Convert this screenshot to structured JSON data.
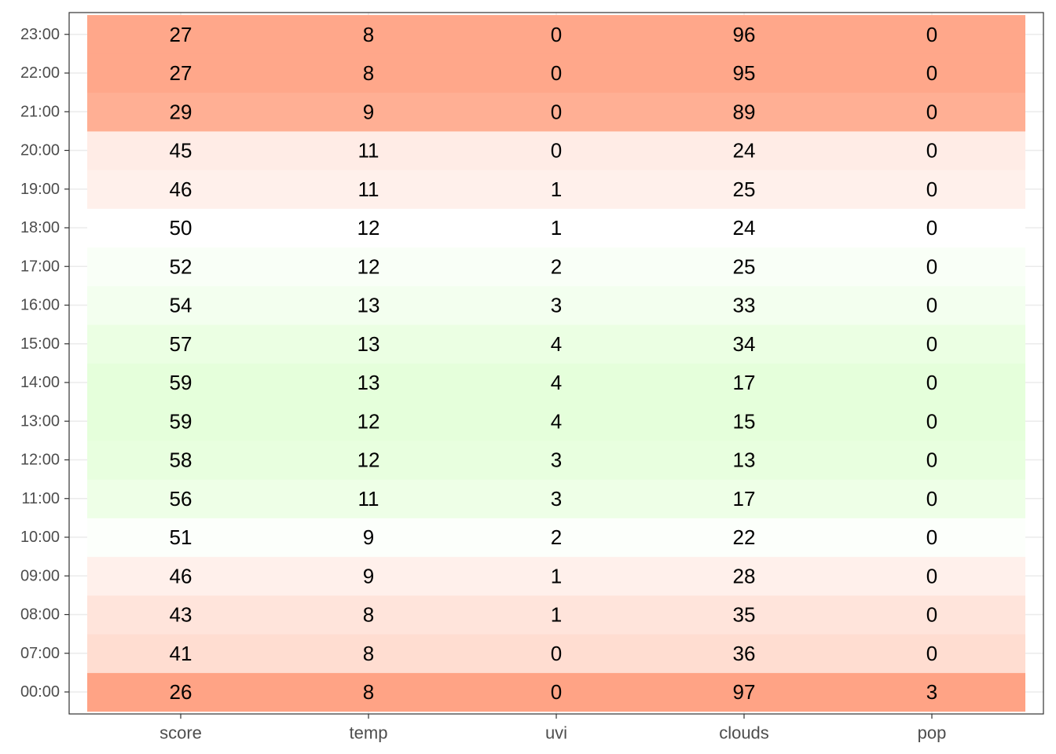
{
  "chart_data": {
    "type": "heatmap",
    "title": "",
    "xlabel": "",
    "ylabel": "",
    "columns": [
      "score",
      "temp",
      "uvi",
      "clouds",
      "pop"
    ],
    "rows": [
      {
        "hour": "00:00",
        "score": 26,
        "temp": 8,
        "uvi": 0,
        "clouds": 97,
        "pop": 3
      },
      {
        "hour": "07:00",
        "score": 41,
        "temp": 8,
        "uvi": 0,
        "clouds": 36,
        "pop": 0
      },
      {
        "hour": "08:00",
        "score": 43,
        "temp": 8,
        "uvi": 1,
        "clouds": 35,
        "pop": 0
      },
      {
        "hour": "09:00",
        "score": 46,
        "temp": 9,
        "uvi": 1,
        "clouds": 28,
        "pop": 0
      },
      {
        "hour": "10:00",
        "score": 51,
        "temp": 9,
        "uvi": 2,
        "clouds": 22,
        "pop": 0
      },
      {
        "hour": "11:00",
        "score": 56,
        "temp": 11,
        "uvi": 3,
        "clouds": 17,
        "pop": 0
      },
      {
        "hour": "12:00",
        "score": 58,
        "temp": 12,
        "uvi": 3,
        "clouds": 13,
        "pop": 0
      },
      {
        "hour": "13:00",
        "score": 59,
        "temp": 12,
        "uvi": 4,
        "clouds": 15,
        "pop": 0
      },
      {
        "hour": "14:00",
        "score": 59,
        "temp": 13,
        "uvi": 4,
        "clouds": 17,
        "pop": 0
      },
      {
        "hour": "15:00",
        "score": 57,
        "temp": 13,
        "uvi": 4,
        "clouds": 34,
        "pop": 0
      },
      {
        "hour": "16:00",
        "score": 54,
        "temp": 13,
        "uvi": 3,
        "clouds": 33,
        "pop": 0
      },
      {
        "hour": "17:00",
        "score": 52,
        "temp": 12,
        "uvi": 2,
        "clouds": 25,
        "pop": 0
      },
      {
        "hour": "18:00",
        "score": 50,
        "temp": 12,
        "uvi": 1,
        "clouds": 24,
        "pop": 0
      },
      {
        "hour": "19:00",
        "score": 46,
        "temp": 11,
        "uvi": 1,
        "clouds": 25,
        "pop": 0
      },
      {
        "hour": "20:00",
        "score": 45,
        "temp": 11,
        "uvi": 0,
        "clouds": 24,
        "pop": 0
      },
      {
        "hour": "21:00",
        "score": 29,
        "temp": 9,
        "uvi": 0,
        "clouds": 89,
        "pop": 0
      },
      {
        "hour": "22:00",
        "score": 27,
        "temp": 8,
        "uvi": 0,
        "clouds": 95,
        "pop": 0
      },
      {
        "hour": "23:00",
        "score": 27,
        "temp": 8,
        "uvi": 0,
        "clouds": 96,
        "pop": 0
      }
    ],
    "fill_by": "score",
    "color_scale": {
      "low": "#ffa385",
      "mid": "#ffffff",
      "high": "#e5ffdb",
      "midpoint": 50
    },
    "grid": true,
    "legend": "none"
  }
}
